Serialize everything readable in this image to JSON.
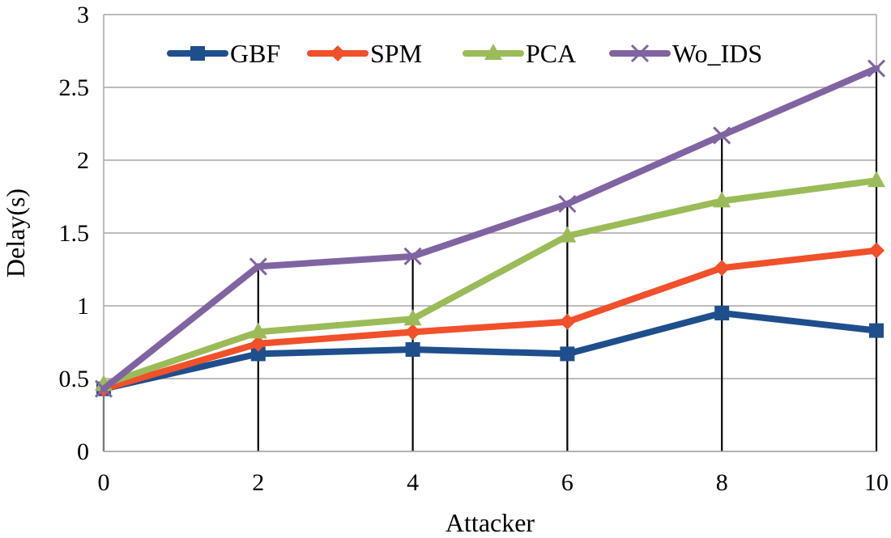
{
  "chart_data": {
    "type": "line",
    "x": [
      0,
      2,
      4,
      6,
      8,
      10
    ],
    "x_tick_labels": [
      "0",
      "2",
      "4",
      "6",
      "8",
      "10"
    ],
    "y_tick_labels": [
      "0",
      "0.5",
      "1",
      "1.5",
      "2",
      "2.5",
      "3"
    ],
    "xlabel": "Attacker",
    "ylabel": "Delay(s)",
    "xlim": [
      0,
      10
    ],
    "ylim": [
      0,
      3
    ],
    "grid": "horizontal",
    "drop_lines": true,
    "legend_position": "top",
    "series": [
      {
        "name": "GBF",
        "color": "#1f4e8c",
        "marker": "square",
        "values": [
          0.43,
          0.67,
          0.7,
          0.67,
          0.95,
          0.83
        ]
      },
      {
        "name": "SPM",
        "color": "#f0502a",
        "marker": "diamond",
        "values": [
          0.43,
          0.74,
          0.82,
          0.89,
          1.26,
          1.38
        ]
      },
      {
        "name": "PCA",
        "color": "#9bbb59",
        "marker": "triangle",
        "values": [
          0.46,
          0.82,
          0.91,
          1.48,
          1.72,
          1.86
        ]
      },
      {
        "name": "Wo_IDS",
        "color": "#8064a2",
        "marker": "x",
        "values": [
          0.43,
          1.27,
          1.34,
          1.7,
          2.17,
          2.63
        ]
      }
    ]
  }
}
